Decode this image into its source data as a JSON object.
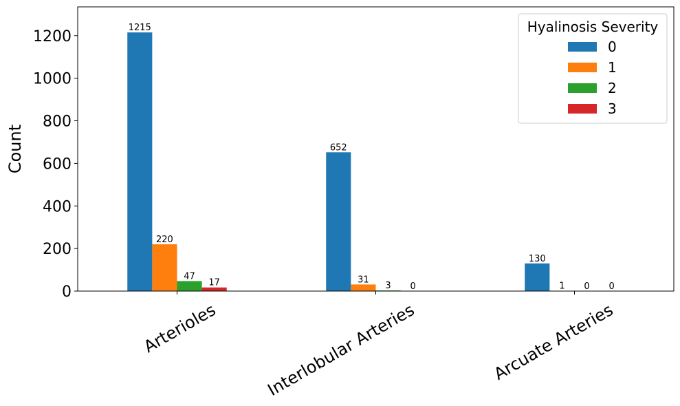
{
  "chart_data": {
    "type": "bar",
    "title": "",
    "xlabel": "",
    "ylabel": "Count",
    "ylim": [
      0,
      1335
    ],
    "yticks": [
      0,
      200,
      400,
      600,
      800,
      1000,
      1200
    ],
    "categories": [
      "Arterioles",
      "Interlobular Arteries",
      "Arcuate Arteries"
    ],
    "legend_title": "Hyalinosis Severity",
    "legend_position": "top-right",
    "grid": false,
    "series": [
      {
        "name": "0",
        "color": "#1f77b4",
        "values": [
          1215,
          652,
          130
        ]
      },
      {
        "name": "1",
        "color": "#ff7f0e",
        "values": [
          220,
          31,
          1
        ]
      },
      {
        "name": "2",
        "color": "#2ca02c",
        "values": [
          47,
          3,
          0
        ]
      },
      {
        "name": "3",
        "color": "#d62728",
        "values": [
          17,
          0,
          0
        ]
      }
    ]
  }
}
